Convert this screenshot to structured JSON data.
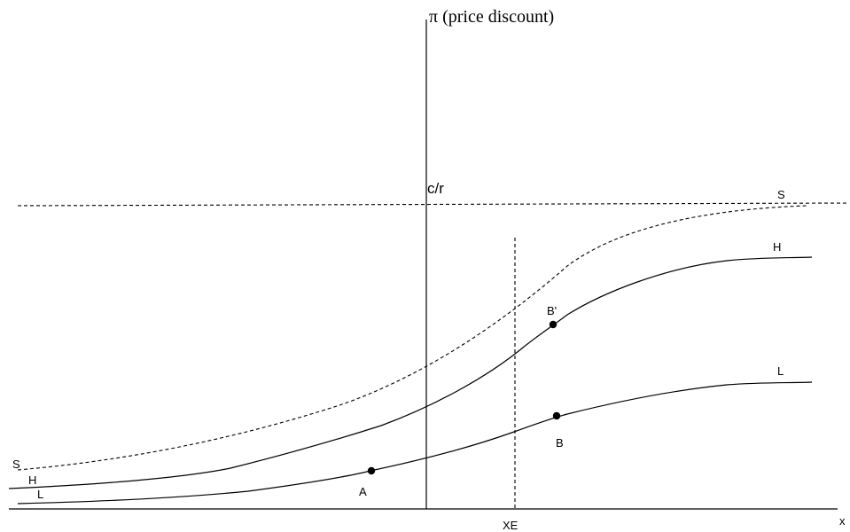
{
  "axes": {
    "y_label": "π (price discount)",
    "x_label": "x"
  },
  "reference_line": {
    "label": "c/r"
  },
  "vertical_marker": {
    "label": "XE"
  },
  "curves": {
    "S": {
      "label_left": "S",
      "label_right": "S",
      "style": "dashed"
    },
    "H": {
      "label_left": "H",
      "label_right": "H",
      "style": "solid"
    },
    "L": {
      "label_left": "L",
      "label_right": "L",
      "style": "solid"
    }
  },
  "points": {
    "A": "A",
    "B": "B",
    "B_prime": "B'"
  },
  "colors": {
    "stroke": "#000000",
    "background": "#ffffff"
  }
}
